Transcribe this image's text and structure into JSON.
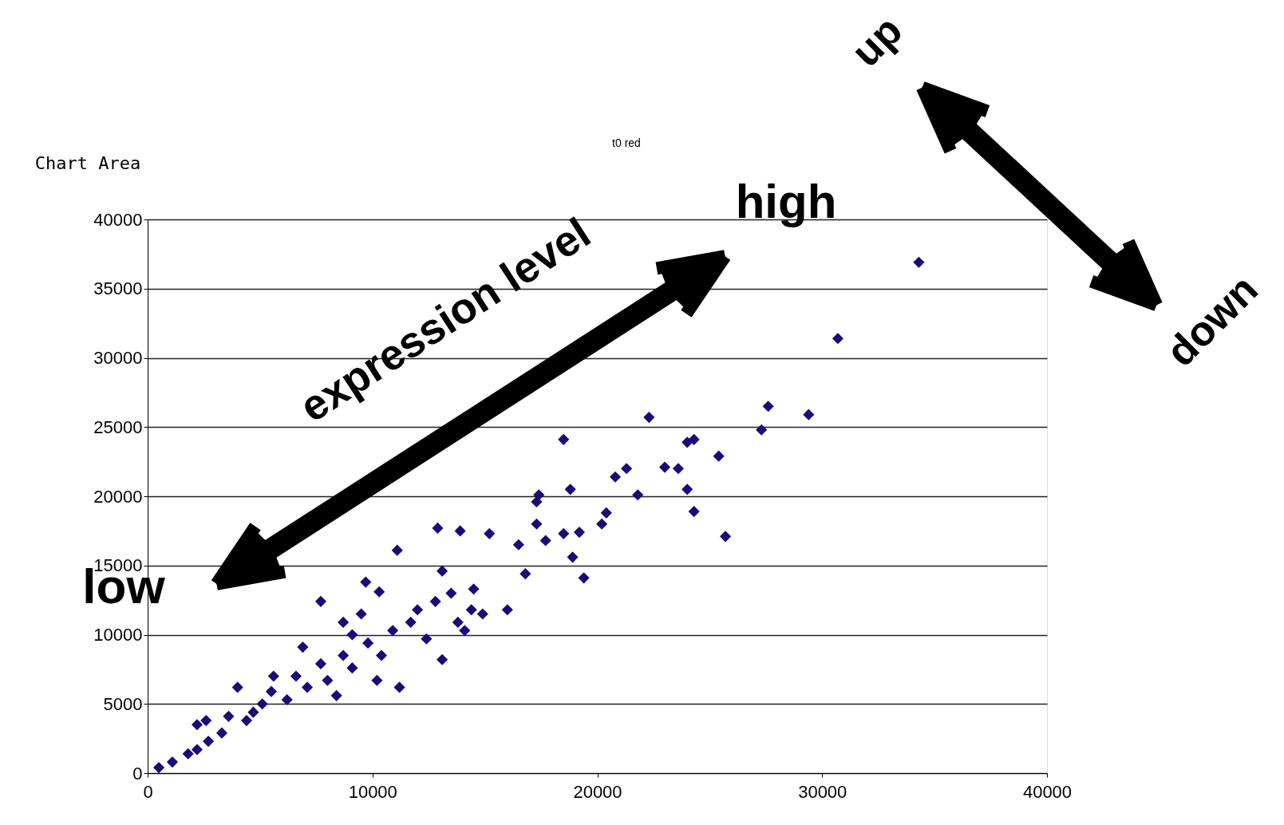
{
  "chart_data": {
    "type": "scatter",
    "title": "t0 red",
    "annotations": [
      "Chart Area",
      "expression level",
      "high",
      "low",
      "up",
      "down"
    ],
    "x": [
      34300,
      30700,
      27600,
      27300,
      29400,
      22300,
      18500,
      24000,
      24300,
      25400,
      23000,
      23600,
      21300,
      20800,
      21800,
      24000,
      24300,
      25700,
      18800,
      17400,
      17300,
      20400,
      20200,
      19200,
      18500,
      17300,
      17700,
      18900,
      19400,
      16500,
      16800,
      15200,
      13900,
      12900,
      11100,
      13100,
      14500,
      16000,
      9700,
      10300,
      7700,
      11200,
      13100,
      12400,
      14100,
      14900,
      500,
      1100,
      1800,
      2200,
      2700,
      3300,
      3600,
      4400,
      5100,
      5500,
      6200,
      6600,
      7100,
      7700,
      8000,
      8700,
      9100,
      9800,
      10400,
      10900,
      11700,
      12000,
      12800,
      13500,
      2200,
      4700,
      6900,
      8700,
      9500,
      10200,
      8400,
      2600,
      4000,
      5600,
      13800,
      14400,
      9100
    ],
    "series": [
      {
        "color": "#1a0a78",
        "values": [
          36900,
          31400,
          26500,
          24800,
          25900,
          25700,
          24100,
          23900,
          24100,
          22900,
          22100,
          22000,
          22000,
          21400,
          20100,
          20500,
          18900,
          17100,
          20500,
          20100,
          19600,
          18800,
          18000,
          17400,
          17300,
          18000,
          16800,
          15600,
          14100,
          16500,
          14400,
          17300,
          17500,
          17700,
          16100,
          14600,
          13300,
          11800,
          13800,
          13100,
          12400,
          6200,
          8200,
          9700,
          10300,
          11500,
          400,
          800,
          1400,
          3500,
          2300,
          2900,
          4100,
          3800,
          5000,
          5900,
          5300,
          7000,
          6200,
          7900,
          6700,
          8500,
          7600,
          9400,
          8500,
          10300,
          10900,
          11800,
          12400,
          13000,
          1700,
          4400,
          9100,
          10900,
          11500,
          6700,
          5600,
          3800,
          6200,
          7000,
          10900,
          11800,
          10000
        ]
      }
    ],
    "xlim": [
      0,
      40000
    ],
    "xticks": [
      0,
      10000,
      20000,
      30000,
      40000
    ],
    "ylim": [
      0,
      40000
    ],
    "yticks": [
      0,
      5000,
      10000,
      15000,
      20000,
      25000,
      30000,
      35000,
      40000
    ],
    "grid": "y",
    "legend": false,
    "marker": "diamond"
  }
}
